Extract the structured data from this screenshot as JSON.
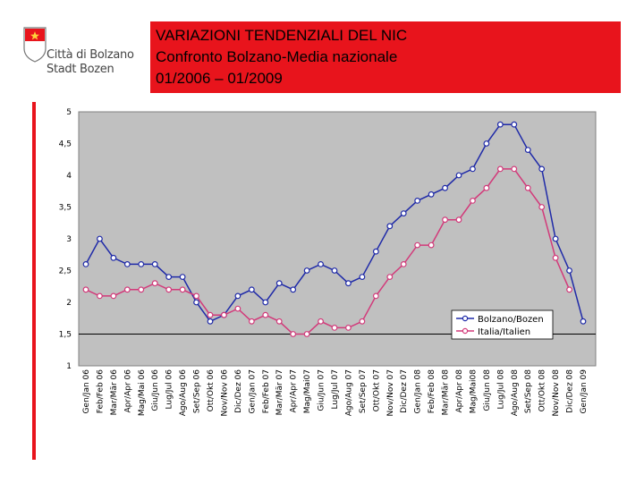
{
  "logo": {
    "line1": "Città di Bolzano",
    "line2": "Stadt Bozen"
  },
  "title": {
    "line1": "VARIAZIONI TENDENZIALI DEL NIC",
    "line2": "Confronto Bolzano-Media nazionale",
    "line3": " 01/2006 – 01/2009"
  },
  "colors": {
    "accent_red": "#e8141c",
    "bolzano": "#1f2aa8",
    "italia": "#d23a7a",
    "plot_bg": "#c0c0c0"
  },
  "chart_data": {
    "type": "line",
    "categories": [
      "Gen/Jan 06",
      "Feb/Feb 06",
      "Mar/Mär 06",
      "Apr/Apr 06",
      "Mag/Mai 06",
      "Giu/Jun 06",
      "Lug/Jul 06",
      "Ago/Aug 06",
      "Set/Sep 06",
      "Ott/Okt 06",
      "Nov/Nov 06",
      "Dic/Dez 06",
      "Gen/Jan 07",
      "Feb/Feb 07",
      "Mar/Mär 07",
      "Apr/Apr 07",
      "Mag/Mai07",
      "Giu/Jun 07",
      "Lug/Jul 07",
      "Ago/Aug 07",
      "Set/Sep 07",
      "Ott/Okt 07",
      "Nov/Nov 07",
      "Dic/Dez 07",
      "Gen/Jan 08",
      "Feb/Feb 08",
      "Mar/Mär 08",
      "Apr/Apr 08",
      "Mag/Mai08",
      "Giu/Jun 08",
      "Lug/Jul 08",
      "Ago/Aug 08",
      "Set/Sep 08",
      "Ott/Okt 08",
      "Nov/Nov 08",
      "Dic/Dez 08",
      "Gen/Jan 09"
    ],
    "series": [
      {
        "name": "Bolzano/Bozen",
        "values": [
          2.6,
          3.0,
          2.7,
          2.6,
          2.6,
          2.6,
          2.4,
          2.4,
          2.0,
          1.7,
          1.8,
          2.1,
          2.2,
          2.0,
          2.3,
          2.2,
          2.5,
          2.6,
          2.5,
          2.3,
          2.4,
          2.8,
          3.2,
          3.4,
          3.6,
          3.7,
          3.8,
          4.0,
          4.1,
          4.5,
          4.8,
          4.8,
          4.4,
          4.1,
          3.0,
          2.5,
          1.7
        ]
      },
      {
        "name": "Italia/Italien",
        "values": [
          2.2,
          2.1,
          2.1,
          2.2,
          2.2,
          2.3,
          2.2,
          2.2,
          2.1,
          1.8,
          1.8,
          1.9,
          1.7,
          1.8,
          1.7,
          1.5,
          1.5,
          1.7,
          1.6,
          1.6,
          1.7,
          2.1,
          2.4,
          2.6,
          2.9,
          2.9,
          3.3,
          3.3,
          3.6,
          3.8,
          4.1,
          4.1,
          3.8,
          3.5,
          2.7,
          2.2,
          null
        ]
      }
    ],
    "yticks": [
      "1",
      "1,5",
      "2",
      "2,5",
      "3",
      "3,5",
      "4",
      "4,5",
      "5"
    ],
    "ylim": [
      1,
      5
    ],
    "grid": false,
    "legend": "bottom-right"
  }
}
